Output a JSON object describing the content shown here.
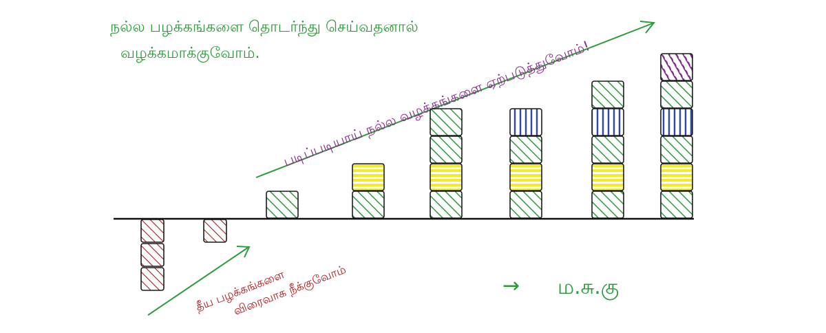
{
  "texts": {
    "top_line1": "நல்ல பழக்கங்களை தொடர்ந்து செய்வதனால்",
    "top_line2": "வழக்கமாக்குவோம்.",
    "diagonal_label": "படிப்படியாய் நல்ல வழக்கங்களை ஏற்படுத்துவோம்!",
    "bad_line1": "தீய பழக்கங்களை",
    "bad_line2": "விரைவாக நீக்குவோம்",
    "signature_arrow": "→",
    "signature": "ம.சு.கு"
  },
  "colors": {
    "green_text": "#2e9b3a",
    "purple_text": "#8b2d8e",
    "red_text": "#b01e1e",
    "green_block": "#2e9b3a",
    "yellow_block": "#f1ec2a",
    "blue_block": "#3346a8",
    "purple_block": "#7a2a86",
    "red_block": "#a51d1d",
    "baseline": "#111111"
  },
  "columns": {
    "below": [
      [
        "red",
        "red",
        "red"
      ],
      [
        "red"
      ]
    ],
    "above": [
      [
        "green"
      ],
      [
        "green",
        "yellow"
      ],
      [
        "green",
        "yellow",
        "green",
        "green"
      ],
      [
        "green",
        "yellow",
        "green",
        "blue"
      ],
      [
        "green",
        "yellow",
        "green",
        "blue",
        "green"
      ],
      [
        "green",
        "yellow",
        "green",
        "blue",
        "green",
        "purple"
      ]
    ]
  }
}
